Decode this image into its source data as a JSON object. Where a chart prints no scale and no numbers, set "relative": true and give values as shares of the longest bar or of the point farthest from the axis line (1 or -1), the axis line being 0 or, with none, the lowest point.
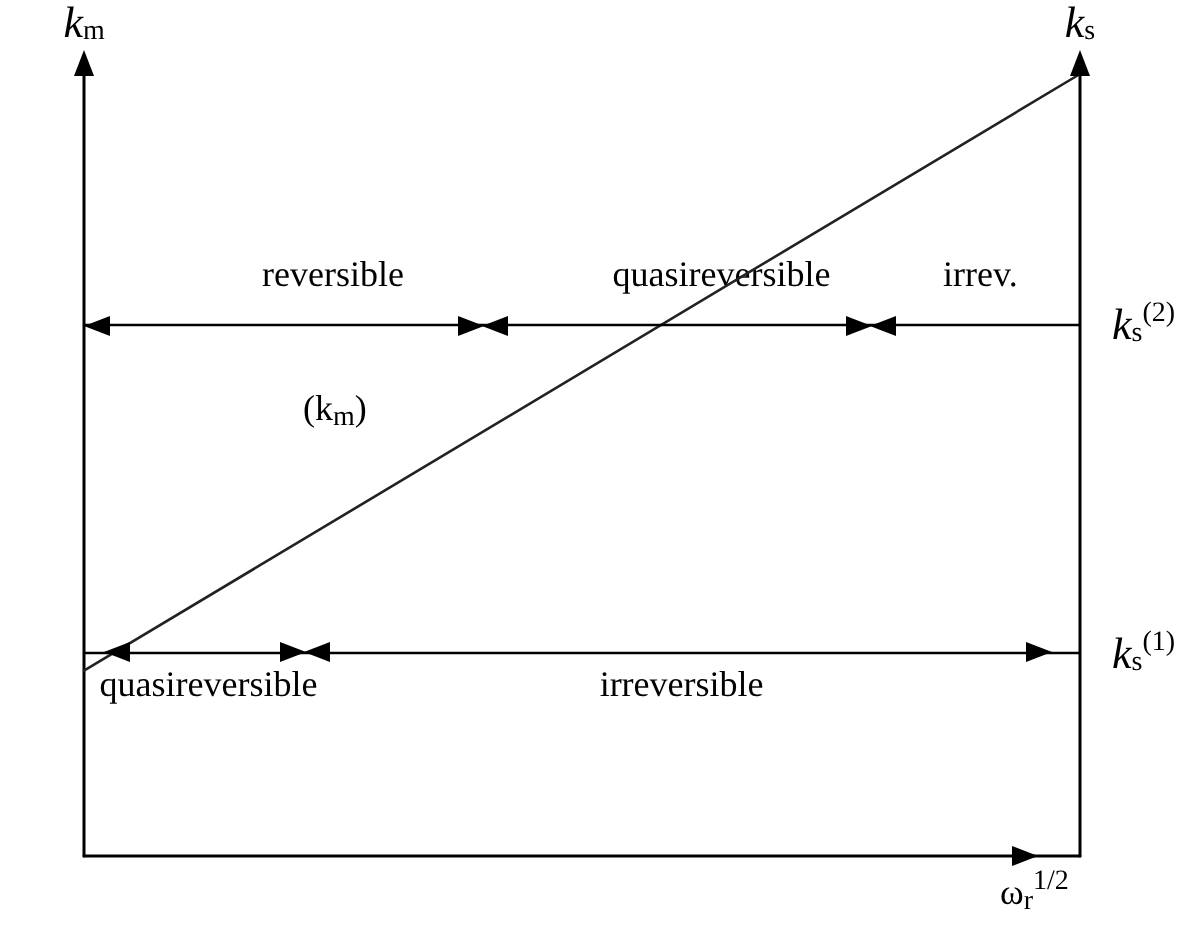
{
  "chart_data": {
    "type": "line",
    "relative": true,
    "xlabel": "ω$_{r}$$^{1/2}$",
    "ylabel": "k$_{m}$",
    "y2label": "k$_{s}$",
    "categories": [
      null,
      null
    ],
    "series": [
      {
        "name": "(k$_{m}$)",
        "color": "#222222",
        "values": [
          0.237,
          1
        ]
      }
    ],
    "ref_lines": [
      {
        "axis": "y",
        "value": 0.677,
        "label": "k$_{s}$$^{(2)}$"
      },
      {
        "axis": "y",
        "value": 0.262,
        "label": "k$_{s}$$^{(1)}$"
      }
    ],
    "annotations": [
      "reversible",
      "quasireversible",
      "irrev.",
      "quasireversible",
      "irreversible"
    ],
    "grid": false,
    "legend": false,
    "marker": "none",
    "line_style": "solid"
  }
}
